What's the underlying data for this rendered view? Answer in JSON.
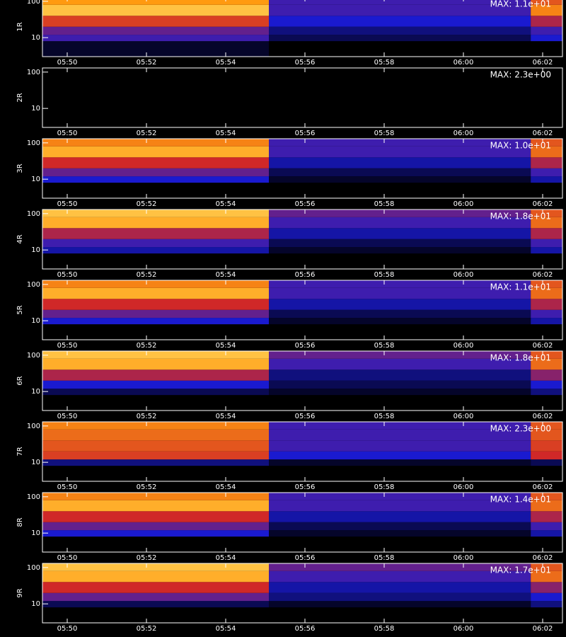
{
  "chart_data": [
    {
      "type": "heatmap",
      "ylabel": "1R",
      "annotation": "MAX: 1.1e+01",
      "log_y": true,
      "colormap": [
        "#000000",
        "#1a1ad0",
        "#d02828",
        "#ff9a10",
        "#ffff90"
      ],
      "x_bins": [
        49.375,
        55.09,
        61.7,
        62.5
      ],
      "y_bins": [
        3,
        8,
        12,
        20,
        40,
        80,
        130
      ],
      "values": [
        [
          0.05,
          0,
          0
        ],
        [
          0.3,
          0.1,
          0.25
        ],
        [
          0.35,
          0.15,
          0.3
        ],
        [
          0.55,
          0.25,
          0.45
        ],
        [
          0.85,
          0.3,
          0.7
        ],
        [
          0.75,
          0.3,
          0.6
        ]
      ],
      "xlim": [
        49.375,
        62.5
      ],
      "xticks": [
        {
          "value": 50,
          "label": "05:50"
        },
        {
          "value": 52,
          "label": "05:52"
        },
        {
          "value": 54,
          "label": "05:54"
        },
        {
          "value": 56,
          "label": "05:56"
        },
        {
          "value": 58,
          "label": "05:58"
        },
        {
          "value": 60,
          "label": "06:00"
        },
        {
          "value": 62,
          "label": "06:02"
        }
      ],
      "ylim": [
        3,
        130
      ],
      "yticks": [
        10,
        100
      ]
    },
    {
      "type": "heatmap",
      "ylabel": "2R",
      "annotation": "MAX: 2.3e+00",
      "log_y": true,
      "colormap": [
        "#000000",
        "#1a1ad0",
        "#d02828",
        "#ff9a10",
        "#ffff90"
      ],
      "x_bins": [
        49.375,
        55.09,
        61.7,
        62.5
      ],
      "y_bins": [
        3,
        8,
        12,
        20,
        40,
        80,
        130
      ],
      "values": [
        [
          0,
          0,
          0
        ],
        [
          0,
          0,
          0
        ],
        [
          0,
          0,
          0
        ],
        [
          0,
          0,
          0
        ],
        [
          0,
          0,
          0
        ],
        [
          0,
          0,
          0
        ]
      ],
      "xlim": [
        49.375,
        62.5
      ],
      "xticks": [
        {
          "value": 50,
          "label": "05:50"
        },
        {
          "value": 52,
          "label": "05:52"
        },
        {
          "value": 54,
          "label": "05:54"
        },
        {
          "value": 56,
          "label": "05:56"
        },
        {
          "value": 58,
          "label": "05:58"
        },
        {
          "value": 60,
          "label": "06:00"
        },
        {
          "value": 62,
          "label": "06:02"
        }
      ],
      "ylim": [
        3,
        130
      ],
      "yticks": [
        10,
        100
      ]
    },
    {
      "type": "heatmap",
      "ylabel": "3R",
      "annotation": "MAX: 1.0e+01",
      "log_y": true,
      "colormap": [
        "#000000",
        "#1a1ad0",
        "#d02828",
        "#ff9a10",
        "#ffff90"
      ],
      "x_bins": [
        49.375,
        55.09,
        61.7,
        62.5
      ],
      "y_bins": [
        3,
        8,
        12,
        20,
        40,
        80,
        130
      ],
      "values": [
        [
          0,
          0,
          0
        ],
        [
          0.25,
          0.05,
          0.2
        ],
        [
          0.35,
          0.1,
          0.3
        ],
        [
          0.5,
          0.2,
          0.45
        ],
        [
          0.8,
          0.3,
          0.65
        ],
        [
          0.7,
          0.3,
          0.6
        ]
      ],
      "xlim": [
        49.375,
        62.5
      ],
      "xticks": [
        {
          "value": 50,
          "label": "05:50"
        },
        {
          "value": 52,
          "label": "05:52"
        },
        {
          "value": 54,
          "label": "05:54"
        },
        {
          "value": 56,
          "label": "05:56"
        },
        {
          "value": 58,
          "label": "05:58"
        },
        {
          "value": 60,
          "label": "06:00"
        },
        {
          "value": 62,
          "label": "06:02"
        }
      ],
      "ylim": [
        3,
        130
      ],
      "yticks": [
        10,
        100
      ]
    },
    {
      "type": "heatmap",
      "ylabel": "4R",
      "annotation": "MAX: 1.8e+01",
      "log_y": true,
      "colormap": [
        "#000000",
        "#1a1ad0",
        "#d02828",
        "#ff9a10",
        "#ffff90"
      ],
      "x_bins": [
        49.375,
        55.09,
        61.7,
        62.5
      ],
      "y_bins": [
        3,
        8,
        12,
        20,
        40,
        80,
        130
      ],
      "values": [
        [
          0,
          0,
          0
        ],
        [
          0.2,
          0.05,
          0.2
        ],
        [
          0.3,
          0.1,
          0.3
        ],
        [
          0.45,
          0.2,
          0.45
        ],
        [
          0.8,
          0.3,
          0.65
        ],
        [
          0.85,
          0.35,
          0.6
        ]
      ],
      "xlim": [
        49.375,
        62.5
      ],
      "xticks": [
        {
          "value": 50,
          "label": "05:50"
        },
        {
          "value": 52,
          "label": "05:52"
        },
        {
          "value": 54,
          "label": "05:54"
        },
        {
          "value": 56,
          "label": "05:56"
        },
        {
          "value": 58,
          "label": "05:58"
        },
        {
          "value": 60,
          "label": "06:00"
        },
        {
          "value": 62,
          "label": "06:02"
        }
      ],
      "ylim": [
        3,
        130
      ],
      "yticks": [
        10,
        100
      ]
    },
    {
      "type": "heatmap",
      "ylabel": "5R",
      "annotation": "MAX: 1.1e+01",
      "log_y": true,
      "colormap": [
        "#000000",
        "#1a1ad0",
        "#d02828",
        "#ff9a10",
        "#ffff90"
      ],
      "x_bins": [
        49.375,
        55.09,
        61.7,
        62.5
      ],
      "y_bins": [
        3,
        8,
        12,
        20,
        40,
        80,
        130
      ],
      "values": [
        [
          0,
          0,
          0
        ],
        [
          0.25,
          0.05,
          0.2
        ],
        [
          0.35,
          0.1,
          0.3
        ],
        [
          0.5,
          0.2,
          0.45
        ],
        [
          0.8,
          0.3,
          0.65
        ],
        [
          0.7,
          0.3,
          0.6
        ]
      ],
      "xlim": [
        49.375,
        62.5
      ],
      "xticks": [
        {
          "value": 50,
          "label": "05:50"
        },
        {
          "value": 52,
          "label": "05:52"
        },
        {
          "value": 54,
          "label": "05:54"
        },
        {
          "value": 56,
          "label": "05:56"
        },
        {
          "value": 58,
          "label": "05:58"
        },
        {
          "value": 60,
          "label": "06:00"
        },
        {
          "value": 62,
          "label": "06:02"
        }
      ],
      "ylim": [
        3,
        130
      ],
      "yticks": [
        10,
        100
      ]
    },
    {
      "type": "heatmap",
      "ylabel": "6R",
      "annotation": "MAX: 1.8e+01",
      "log_y": true,
      "colormap": [
        "#000000",
        "#1a1ad0",
        "#d02828",
        "#ff9a10",
        "#ffff90"
      ],
      "x_bins": [
        49.375,
        55.09,
        61.7,
        62.5
      ],
      "y_bins": [
        3,
        8,
        12,
        20,
        40,
        80,
        130
      ],
      "values": [
        [
          0,
          0,
          0
        ],
        [
          0.1,
          0.05,
          0.15
        ],
        [
          0.25,
          0.1,
          0.25
        ],
        [
          0.45,
          0.15,
          0.4
        ],
        [
          0.8,
          0.3,
          0.65
        ],
        [
          0.85,
          0.35,
          0.6
        ]
      ],
      "xlim": [
        49.375,
        62.5
      ],
      "xticks": [
        {
          "value": 50,
          "label": "05:50"
        },
        {
          "value": 52,
          "label": "05:52"
        },
        {
          "value": 54,
          "label": "05:54"
        },
        {
          "value": 56,
          "label": "05:56"
        },
        {
          "value": 58,
          "label": "05:58"
        },
        {
          "value": 60,
          "label": "06:00"
        },
        {
          "value": 62,
          "label": "06:02"
        }
      ],
      "ylim": [
        3,
        130
      ],
      "yticks": [
        10,
        100
      ]
    },
    {
      "type": "heatmap",
      "ylabel": "7R",
      "annotation": "MAX: 2.3e+00",
      "log_y": true,
      "colormap": [
        "#000000",
        "#1a1ad0",
        "#d02828",
        "#ff9a10",
        "#ffff90"
      ],
      "x_bins": [
        49.375,
        55.09,
        61.7,
        62.5
      ],
      "y_bins": [
        3,
        8,
        12,
        20,
        40,
        80,
        130
      ],
      "values": [
        [
          0,
          0,
          0
        ],
        [
          0.15,
          0.05,
          0.1
        ],
        [
          0.55,
          0.25,
          0.5
        ],
        [
          0.6,
          0.3,
          0.55
        ],
        [
          0.65,
          0.3,
          0.6
        ],
        [
          0.7,
          0.3,
          0.6
        ]
      ],
      "xlim": [
        49.375,
        62.5
      ],
      "xticks": [
        {
          "value": 50,
          "label": "05:50"
        },
        {
          "value": 52,
          "label": "05:52"
        },
        {
          "value": 54,
          "label": "05:54"
        },
        {
          "value": 56,
          "label": "05:56"
        },
        {
          "value": 58,
          "label": "05:58"
        },
        {
          "value": 60,
          "label": "06:00"
        },
        {
          "value": 62,
          "label": "06:02"
        }
      ],
      "ylim": [
        3,
        130
      ],
      "yticks": [
        10,
        100
      ]
    },
    {
      "type": "heatmap",
      "ylabel": "8R",
      "annotation": "MAX: 1.4e+01",
      "log_y": true,
      "colormap": [
        "#000000",
        "#1a1ad0",
        "#d02828",
        "#ff9a10",
        "#ffff90"
      ],
      "x_bins": [
        49.375,
        55.09,
        61.7,
        62.5
      ],
      "y_bins": [
        3,
        8,
        12,
        20,
        40,
        80,
        130
      ],
      "values": [
        [
          0,
          0,
          0
        ],
        [
          0.25,
          0.05,
          0.2
        ],
        [
          0.35,
          0.1,
          0.3
        ],
        [
          0.5,
          0.2,
          0.45
        ],
        [
          0.8,
          0.3,
          0.65
        ],
        [
          0.7,
          0.3,
          0.6
        ]
      ],
      "xlim": [
        49.375,
        62.5
      ],
      "xticks": [
        {
          "value": 50,
          "label": "05:50"
        },
        {
          "value": 52,
          "label": "05:52"
        },
        {
          "value": 54,
          "label": "05:54"
        },
        {
          "value": 56,
          "label": "05:56"
        },
        {
          "value": 58,
          "label": "05:58"
        },
        {
          "value": 60,
          "label": "06:00"
        },
        {
          "value": 62,
          "label": "06:02"
        }
      ],
      "ylim": [
        3,
        130
      ],
      "yticks": [
        10,
        100
      ]
    },
    {
      "type": "heatmap",
      "ylabel": "9R",
      "annotation": "MAX: 1.7e+01",
      "log_y": true,
      "colormap": [
        "#000000",
        "#1a1ad0",
        "#d02828",
        "#ff9a10",
        "#ffff90"
      ],
      "x_bins": [
        49.375,
        55.09,
        61.7,
        62.5
      ],
      "y_bins": [
        3,
        8,
        12,
        20,
        40,
        80,
        130
      ],
      "values": [
        [
          0,
          0,
          0
        ],
        [
          0.1,
          0.05,
          0.15
        ],
        [
          0.35,
          0.15,
          0.25
        ],
        [
          0.5,
          0.2,
          0.4
        ],
        [
          0.8,
          0.3,
          0.65
        ],
        [
          0.85,
          0.35,
          0.6
        ]
      ],
      "xlim": [
        49.375,
        62.5
      ],
      "xticks": [
        {
          "value": 50,
          "label": "05:50"
        },
        {
          "value": 52,
          "label": "05:52"
        },
        {
          "value": 54,
          "label": "05:54"
        },
        {
          "value": 56,
          "label": "05:56"
        },
        {
          "value": 58,
          "label": "05:58"
        },
        {
          "value": 60,
          "label": "06:00"
        },
        {
          "value": 62,
          "label": "06:02"
        }
      ],
      "ylim": [
        3,
        130
      ],
      "yticks": [
        10,
        100
      ]
    }
  ]
}
